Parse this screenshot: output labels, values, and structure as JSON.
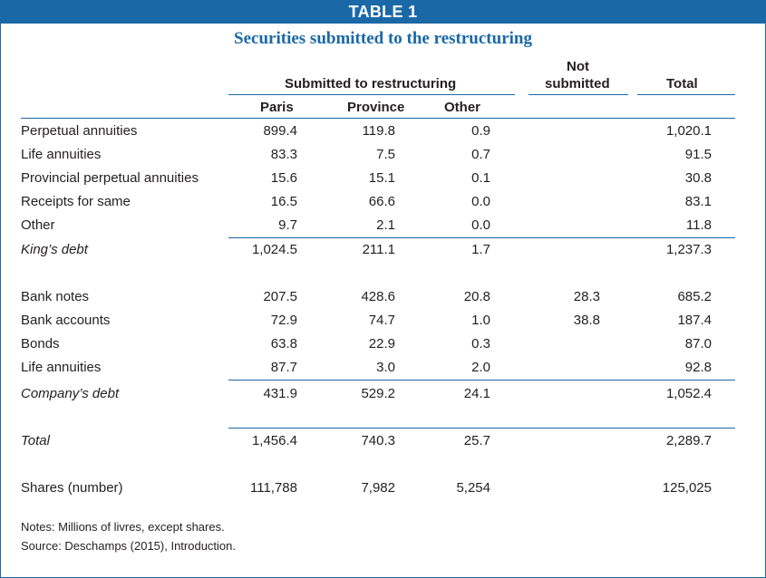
{
  "table_label": "TABLE 1",
  "title": "Securities submitted to the restructuring",
  "headers": {
    "group": "Submitted to restructuring",
    "not_submitted_line1": "Not",
    "not_submitted_line2": "submitted",
    "total": "Total",
    "paris": "Paris",
    "province": "Province",
    "other": "Other"
  },
  "rows": [
    {
      "label": "Perpetual annuities",
      "paris": "899.4",
      "province": "119.8",
      "other": "0.9",
      "not_submitted": "",
      "total": "1,020.1"
    },
    {
      "label": "Life annuities",
      "paris": "83.3",
      "province": "7.5",
      "other": "0.7",
      "not_submitted": "",
      "total": "91.5"
    },
    {
      "label": "Provincial perpetual annuities",
      "paris": "15.6",
      "province": "15.1",
      "other": "0.1",
      "not_submitted": "",
      "total": "30.8"
    },
    {
      "label": "Receipts for same",
      "paris": "16.5",
      "province": "66.6",
      "other": "0.0",
      "not_submitted": "",
      "total": "83.1"
    },
    {
      "label": "Other",
      "paris": "9.7",
      "province": "2.1",
      "other": "0.0",
      "not_submitted": "",
      "total": "11.8"
    },
    {
      "label": "King’s debt",
      "paris": "1,024.5",
      "province": "211.1",
      "other": "1.7",
      "not_submitted": "",
      "total": "1,237.3"
    },
    {
      "label": "Bank notes",
      "paris": "207.5",
      "province": "428.6",
      "other": "20.8",
      "not_submitted": "28.3",
      "total": "685.2"
    },
    {
      "label": "Bank accounts",
      "paris": "72.9",
      "province": "74.7",
      "other": "1.0",
      "not_submitted": "38.8",
      "total": "187.4"
    },
    {
      "label": "Bonds",
      "paris": "63.8",
      "province": "22.9",
      "other": "0.3",
      "not_submitted": "",
      "total": "87.0"
    },
    {
      "label": "Life annuities",
      "paris": "87.7",
      "province": "3.0",
      "other": "2.0",
      "not_submitted": "",
      "total": "92.8"
    },
    {
      "label": "Company’s debt",
      "paris": "431.9",
      "province": "529.2",
      "other": "24.1",
      "not_submitted": "",
      "total": "1,052.4"
    },
    {
      "label": "Total",
      "paris": "1,456.4",
      "province": "740.3",
      "other": "25.7",
      "not_submitted": "",
      "total": "2,289.7"
    },
    {
      "label": "Shares (number)",
      "paris": "111,788",
      "province": "7,982",
      "other": "5,254",
      "not_submitted": "",
      "total": "125,025"
    }
  ],
  "notes": [
    "Notes: Millions of livres, except shares.",
    "Source: Deschamps (2015), Introduction."
  ]
}
